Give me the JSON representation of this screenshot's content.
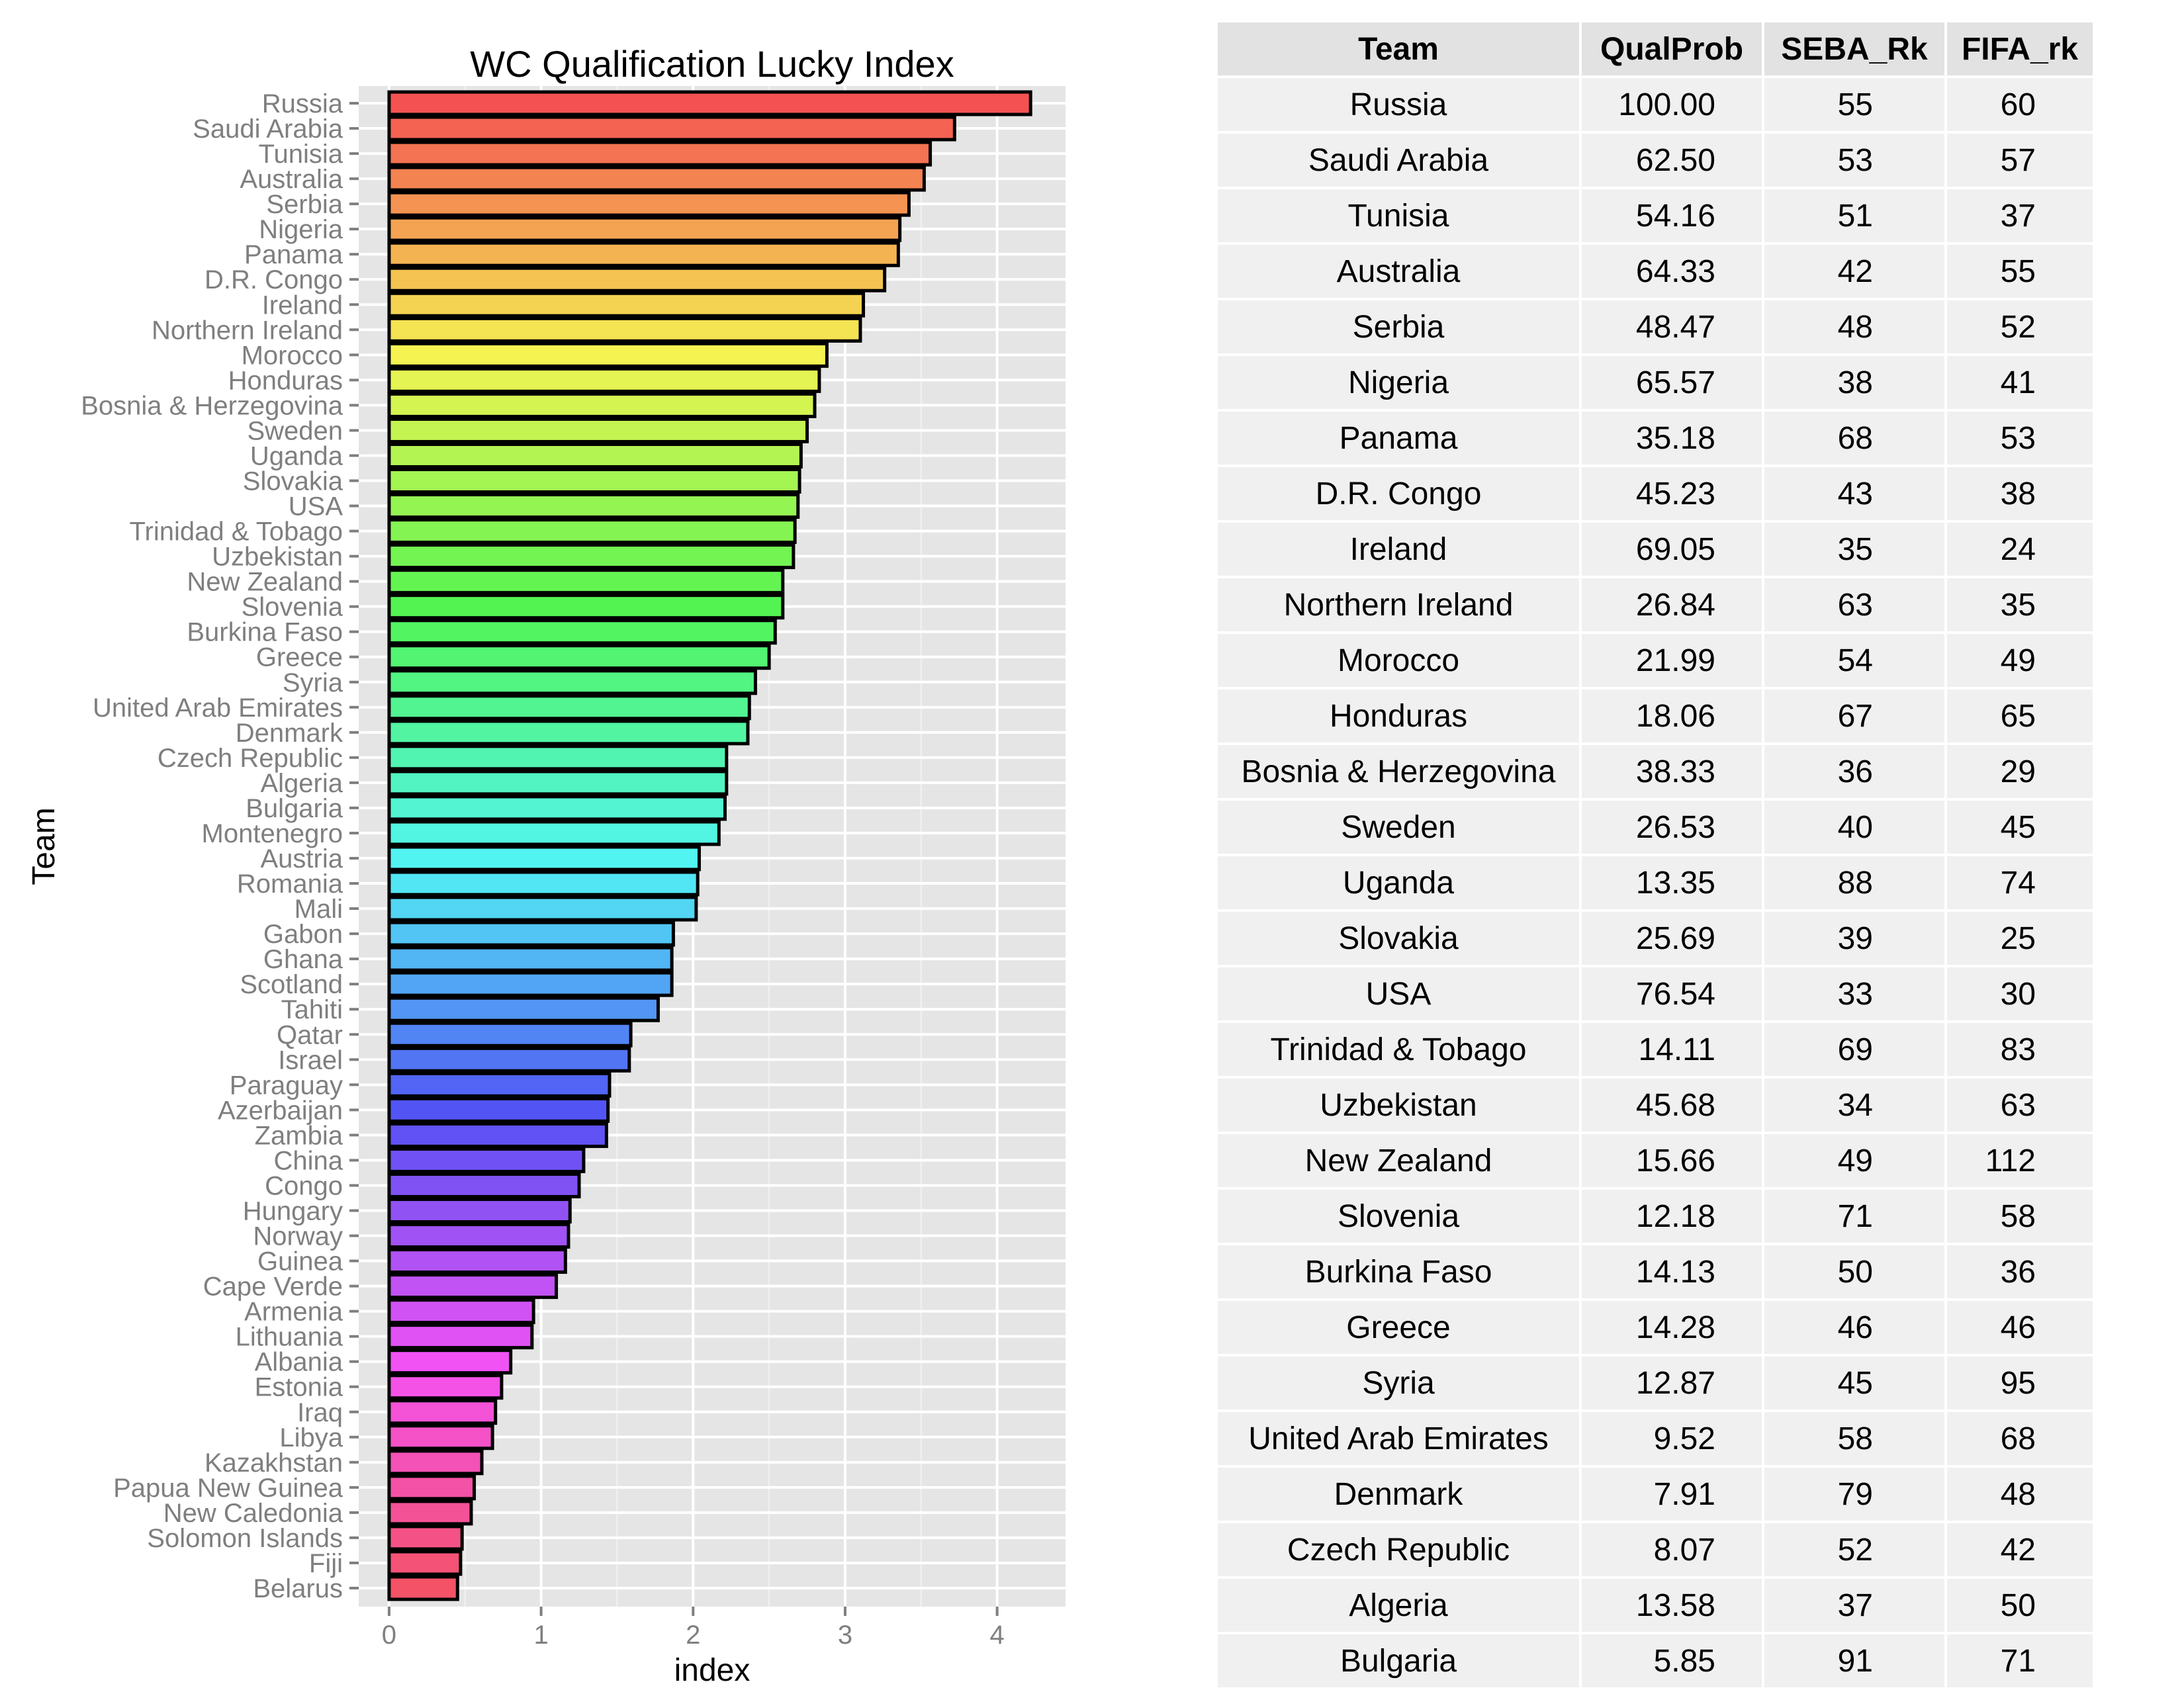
{
  "chart_data": {
    "type": "bar",
    "orientation": "horizontal",
    "title": "WC Qualification Lucky Index",
    "xlabel": "index",
    "ylabel": "Team",
    "xlim": [
      -0.2,
      4.45
    ],
    "xticks": [
      0,
      1,
      2,
      3,
      4
    ],
    "grid": true,
    "legend": "none",
    "categories": [
      "Russia",
      "Saudi Arabia",
      "Tunisia",
      "Australia",
      "Serbia",
      "Nigeria",
      "Panama",
      "D.R. Congo",
      "Ireland",
      "Northern Ireland",
      "Morocco",
      "Honduras",
      "Bosnia & Herzegovina",
      "Sweden",
      "Uganda",
      "Slovakia",
      "USA",
      "Trinidad & Tobago",
      "Uzbekistan",
      "New Zealand",
      "Slovenia",
      "Burkina Faso",
      "Greece",
      "Syria",
      "United Arab Emirates",
      "Denmark",
      "Czech Republic",
      "Algeria",
      "Bulgaria",
      "Montenegro",
      "Austria",
      "Romania",
      "Mali",
      "Gabon",
      "Ghana",
      "Scotland",
      "Tahiti",
      "Qatar",
      "Israel",
      "Paraguay",
      "Azerbaijan",
      "Zambia",
      "China",
      "Congo",
      "Hungary",
      "Norway",
      "Guinea",
      "Cape Verde",
      "Armenia",
      "Lithuania",
      "Albania",
      "Estonia",
      "Iraq",
      "Libya",
      "Kazakhstan",
      "Papua New Guinea",
      "New Caledonia",
      "Solomon Islands",
      "Fiji",
      "Belarus"
    ],
    "values": [
      4.22,
      3.72,
      3.56,
      3.52,
      3.42,
      3.36,
      3.35,
      3.26,
      3.12,
      3.1,
      2.88,
      2.83,
      2.8,
      2.75,
      2.71,
      2.7,
      2.69,
      2.67,
      2.66,
      2.59,
      2.59,
      2.54,
      2.5,
      2.41,
      2.37,
      2.36,
      2.22,
      2.22,
      2.21,
      2.17,
      2.04,
      2.03,
      2.02,
      1.87,
      1.86,
      1.86,
      1.77,
      1.59,
      1.58,
      1.45,
      1.44,
      1.43,
      1.28,
      1.25,
      1.19,
      1.18,
      1.16,
      1.1,
      0.95,
      0.94,
      0.8,
      0.74,
      0.7,
      0.68,
      0.61,
      0.56,
      0.54,
      0.48,
      0.47,
      0.45
    ]
  },
  "table": {
    "headers": [
      "Team",
      "QualProb",
      "SEBA_Rk",
      "FIFA_rk"
    ],
    "rows": [
      [
        "Russia",
        "100.00",
        "55",
        "60"
      ],
      [
        "Saudi Arabia",
        "62.50",
        "53",
        "57"
      ],
      [
        "Tunisia",
        "54.16",
        "51",
        "37"
      ],
      [
        "Australia",
        "64.33",
        "42",
        "55"
      ],
      [
        "Serbia",
        "48.47",
        "48",
        "52"
      ],
      [
        "Nigeria",
        "65.57",
        "38",
        "41"
      ],
      [
        "Panama",
        "35.18",
        "68",
        "53"
      ],
      [
        "D.R. Congo",
        "45.23",
        "43",
        "38"
      ],
      [
        "Ireland",
        "69.05",
        "35",
        "24"
      ],
      [
        "Northern Ireland",
        "26.84",
        "63",
        "35"
      ],
      [
        "Morocco",
        "21.99",
        "54",
        "49"
      ],
      [
        "Honduras",
        "18.06",
        "67",
        "65"
      ],
      [
        "Bosnia & Herzegovina",
        "38.33",
        "36",
        "29"
      ],
      [
        "Sweden",
        "26.53",
        "40",
        "45"
      ],
      [
        "Uganda",
        "13.35",
        "88",
        "74"
      ],
      [
        "Slovakia",
        "25.69",
        "39",
        "25"
      ],
      [
        "USA",
        "76.54",
        "33",
        "30"
      ],
      [
        "Trinidad & Tobago",
        "14.11",
        "69",
        "83"
      ],
      [
        "Uzbekistan",
        "45.68",
        "34",
        "63"
      ],
      [
        "New Zealand",
        "15.66",
        "49",
        "112"
      ],
      [
        "Slovenia",
        "12.18",
        "71",
        "58"
      ],
      [
        "Burkina Faso",
        "14.13",
        "50",
        "36"
      ],
      [
        "Greece",
        "14.28",
        "46",
        "46"
      ],
      [
        "Syria",
        "12.87",
        "45",
        "95"
      ],
      [
        "United Arab Emirates",
        "9.52",
        "58",
        "68"
      ],
      [
        "Denmark",
        "7.91",
        "79",
        "48"
      ],
      [
        "Czech Republic",
        "8.07",
        "52",
        "42"
      ],
      [
        "Algeria",
        "13.58",
        "37",
        "50"
      ],
      [
        "Bulgaria",
        "5.85",
        "91",
        "71"
      ]
    ]
  }
}
